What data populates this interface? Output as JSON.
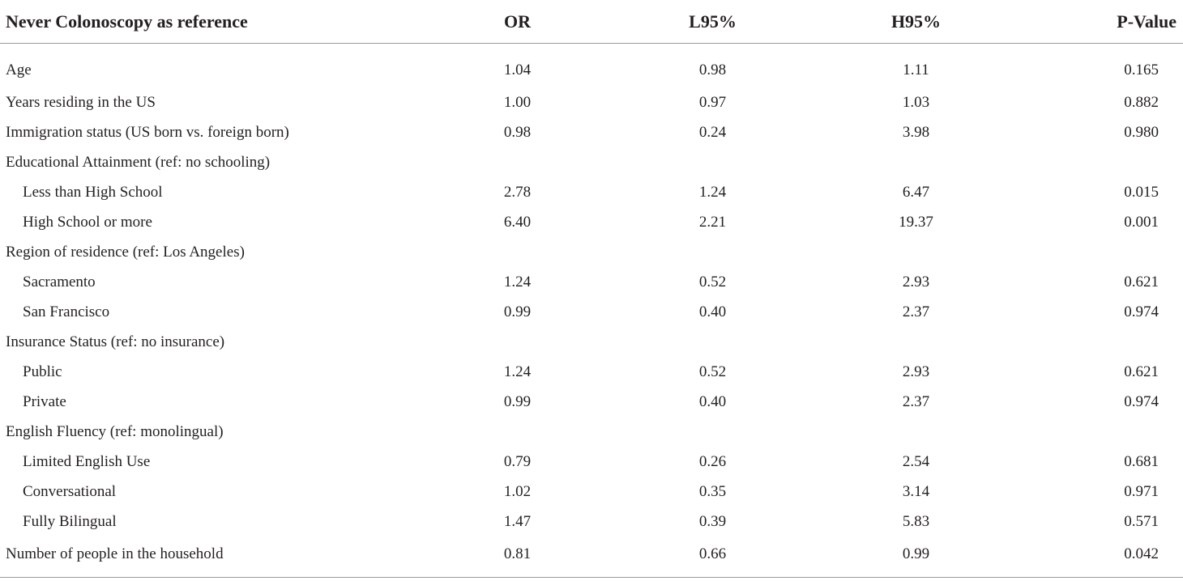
{
  "table": {
    "headers": {
      "label": "Never Colonoscopy as reference",
      "or": "OR",
      "l95": "L95%",
      "h95": "H95%",
      "p": "P-Value"
    },
    "rows": [
      {
        "label": "Age",
        "indent": false,
        "or": "1.04",
        "l95": "0.98",
        "h95": "1.11",
        "p": "0.165"
      },
      {
        "label": "Years residing in the US",
        "indent": false,
        "or": "1.00",
        "l95": "0.97",
        "h95": "1.03",
        "p": "0.882"
      },
      {
        "label": "Immigration status (US born vs. foreign born)",
        "indent": false,
        "or": "0.98",
        "l95": "0.24",
        "h95": "3.98",
        "p": "0.980"
      },
      {
        "label": "Educational Attainment (ref: no schooling)",
        "indent": false,
        "or": "",
        "l95": "",
        "h95": "",
        "p": ""
      },
      {
        "label": "Less than High School",
        "indent": true,
        "or": "2.78",
        "l95": "1.24",
        "h95": "6.47",
        "p": "0.015"
      },
      {
        "label": "High School or more",
        "indent": true,
        "or": "6.40",
        "l95": "2.21",
        "h95": "19.37",
        "p": "0.001"
      },
      {
        "label": "Region of residence (ref: Los Angeles)",
        "indent": false,
        "or": "",
        "l95": "",
        "h95": "",
        "p": ""
      },
      {
        "label": "Sacramento",
        "indent": true,
        "or": "1.24",
        "l95": "0.52",
        "h95": "2.93",
        "p": "0.621"
      },
      {
        "label": "San Francisco",
        "indent": true,
        "or": "0.99",
        "l95": "0.40",
        "h95": "2.37",
        "p": "0.974"
      },
      {
        "label": "Insurance Status (ref: no insurance)",
        "indent": false,
        "or": "",
        "l95": "",
        "h95": "",
        "p": ""
      },
      {
        "label": "Public",
        "indent": true,
        "or": "1.24",
        "l95": "0.52",
        "h95": "2.93",
        "p": "0.621"
      },
      {
        "label": "Private",
        "indent": true,
        "or": "0.99",
        "l95": "0.40",
        "h95": "2.37",
        "p": "0.974"
      },
      {
        "label": "English Fluency (ref: monolingual)",
        "indent": false,
        "or": "",
        "l95": "",
        "h95": "",
        "p": ""
      },
      {
        "label": "Limited English Use",
        "indent": true,
        "or": "0.79",
        "l95": "0.26",
        "h95": "2.54",
        "p": "0.681"
      },
      {
        "label": "Conversational",
        "indent": true,
        "or": "1.02",
        "l95": "0.35",
        "h95": "3.14",
        "p": "0.971"
      },
      {
        "label": "Fully Bilingual",
        "indent": true,
        "or": "1.47",
        "l95": "0.39",
        "h95": "5.83",
        "p": "0.571"
      },
      {
        "label": "Number of people in the household",
        "indent": false,
        "or": "0.81",
        "l95": "0.66",
        "h95": "0.99",
        "p": "0.042"
      }
    ]
  }
}
